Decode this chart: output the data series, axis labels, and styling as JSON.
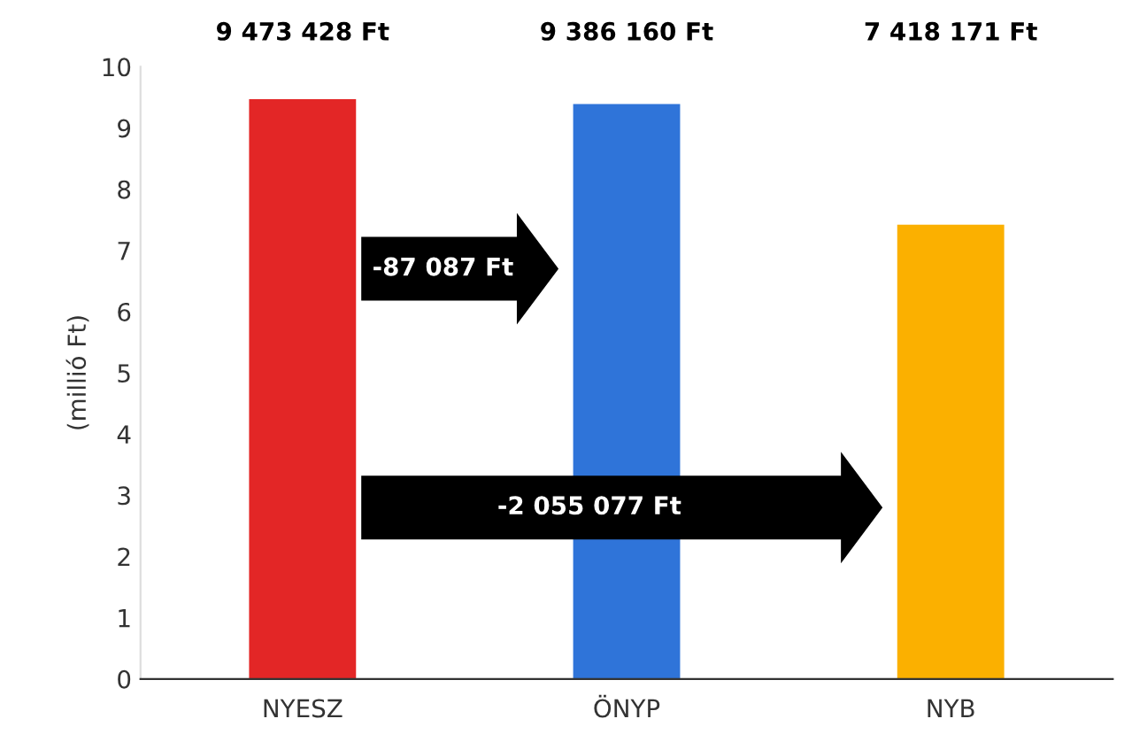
{
  "chart_data": {
    "type": "bar",
    "ylabel": "(millió Ft)",
    "categories": [
      "NYESZ",
      "ÖNYP",
      "NYB"
    ],
    "values": [
      9.47,
      9.39,
      7.42
    ],
    "colors": [
      "#e32626",
      "#2f74d9",
      "#fbb000"
    ],
    "ylim": [
      0,
      10
    ],
    "yticks": [
      0,
      1,
      2,
      3,
      4,
      5,
      6,
      7,
      8,
      9,
      10
    ],
    "grid": false,
    "annotations": [
      "9 473 428 Ft",
      "9 386 160 Ft",
      "7 418 171 Ft",
      "-87 087 Ft",
      "-2 055 077 Ft"
    ]
  }
}
